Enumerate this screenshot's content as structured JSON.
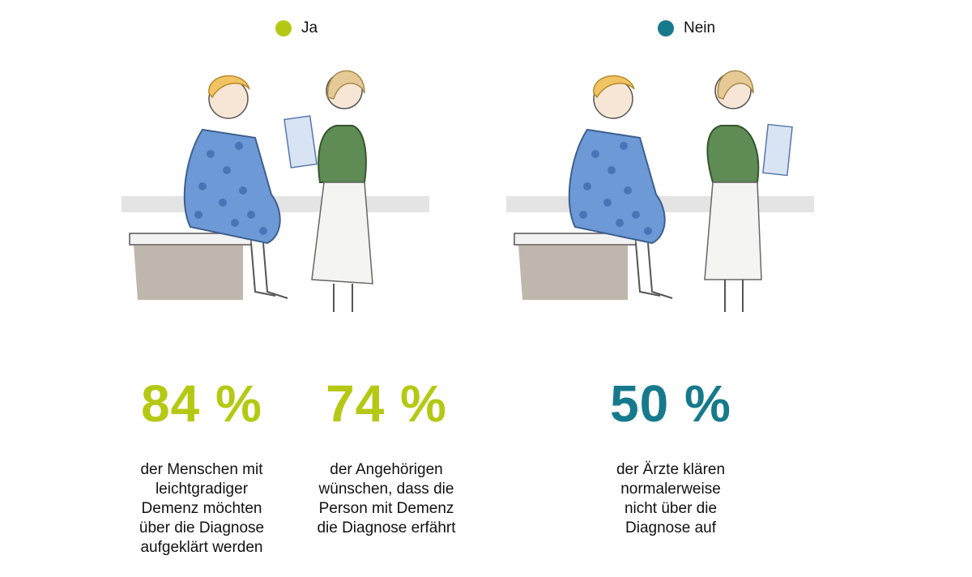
{
  "colors": {
    "ja": "#b5c914",
    "nein": "#167a8c"
  },
  "legend": [
    {
      "label": "Ja"
    },
    {
      "label": "Nein"
    }
  ],
  "stats": [
    {
      "value": "84 %",
      "text": "der Menschen mit\nleichtgradiger\nDemenz möchten\nüber die Diagnose\naufgeklärt werden"
    },
    {
      "value": "74 %",
      "text": "der Angehörigen\nwünschen, dass die\nPerson mit Demenz\ndie Diagnose erfährt"
    },
    {
      "value": "50 %",
      "text": "der Ärzte klären\nnormalerweise\nnicht über die\nDiagnose auf"
    }
  ]
}
